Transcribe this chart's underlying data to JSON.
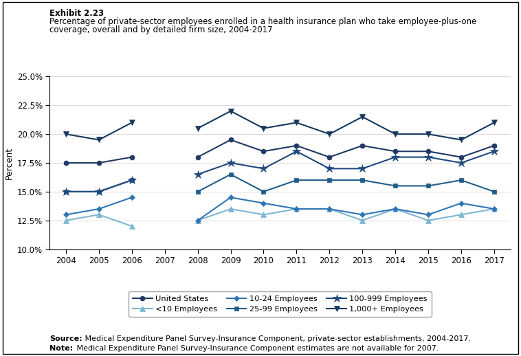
{
  "years": [
    2004,
    2005,
    2006,
    2007,
    2008,
    2009,
    2010,
    2011,
    2012,
    2013,
    2014,
    2015,
    2016,
    2017
  ],
  "series": [
    {
      "name": "United States",
      "values": [
        17.5,
        17.5,
        18.0,
        null,
        18.0,
        19.5,
        18.5,
        19.0,
        18.0,
        19.0,
        18.5,
        18.5,
        18.0,
        19.0
      ],
      "color": "#1F3864",
      "marker": "o",
      "markersize": 5.0,
      "linewidth": 1.5
    },
    {
      "name": "<10 Employees",
      "values": [
        12.5,
        13.0,
        12.0,
        null,
        12.5,
        13.5,
        13.0,
        13.5,
        13.5,
        12.5,
        13.5,
        12.5,
        13.0,
        13.5
      ],
      "color": "#7EB6D4",
      "marker": "^",
      "markersize": 6.0,
      "linewidth": 1.5
    },
    {
      "name": "10-24 Employees",
      "values": [
        13.0,
        13.5,
        14.5,
        null,
        12.5,
        14.5,
        14.0,
        13.5,
        13.5,
        13.0,
        13.5,
        13.0,
        14.0,
        13.5
      ],
      "color": "#2E75B6",
      "marker": "D",
      "markersize": 4.5,
      "linewidth": 1.5
    },
    {
      "name": "25-99 Employees",
      "values": [
        15.0,
        15.0,
        16.0,
        null,
        15.0,
        16.5,
        15.0,
        16.0,
        16.0,
        16.0,
        15.5,
        15.5,
        16.0,
        15.0
      ],
      "color": "#1F5C8A",
      "marker": "s",
      "markersize": 5.0,
      "linewidth": 1.5
    },
    {
      "name": "100-999 Employees",
      "values": [
        15.0,
        15.0,
        16.0,
        null,
        16.5,
        17.5,
        17.0,
        18.5,
        17.0,
        17.0,
        18.0,
        18.0,
        17.5,
        18.5
      ],
      "color": "#1F497D",
      "marker": "*",
      "markersize": 9.0,
      "linewidth": 1.5
    },
    {
      "name": "1,000+ Employees",
      "values": [
        20.0,
        19.5,
        21.0,
        null,
        20.5,
        22.0,
        20.5,
        21.0,
        20.0,
        21.5,
        20.0,
        20.0,
        19.5,
        21.0
      ],
      "color": "#17375E",
      "marker": "v",
      "markersize": 6.0,
      "linewidth": 1.5
    }
  ],
  "ylim": [
    10.0,
    25.0
  ],
  "yticks": [
    10.0,
    12.5,
    15.0,
    17.5,
    20.0,
    22.5,
    25.0
  ],
  "ylabel": "Percent",
  "exhibit_title": "Exhibit 2.23",
  "subtitle_line1": "Percentage of private-sector employees enrolled in a health insurance plan who take employee-plus-one",
  "subtitle_line2": "coverage, overall and by detailed firm size, 2004-2017",
  "source_bold": "Source:",
  "source_rest": " Medical Expenditure Panel Survey-Insurance Component, private-sector establishments, 2004-2017.",
  "note_bold": "Note:",
  "note_rest": " Medical Expenditure Panel Survey-Insurance Component estimates are not available for 2007."
}
